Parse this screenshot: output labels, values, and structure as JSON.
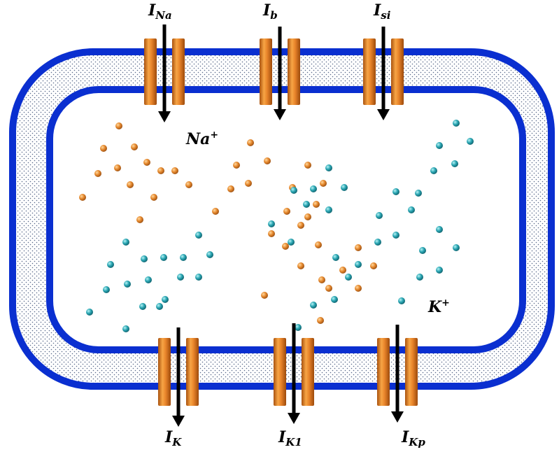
{
  "currents": [
    {
      "symbol": "I",
      "subscript": "Na"
    },
    {
      "symbol": "I",
      "subscript": "b"
    },
    {
      "symbol": "I",
      "subscript": "si"
    },
    {
      "symbol": "I",
      "subscript": "K"
    },
    {
      "symbol": "I",
      "subscript": "K1"
    },
    {
      "symbol": "I",
      "subscript": "Kp"
    }
  ],
  "ions": [
    {
      "symbol": "Na",
      "superscript": "+"
    },
    {
      "symbol": "K",
      "superscript": "+"
    }
  ]
}
